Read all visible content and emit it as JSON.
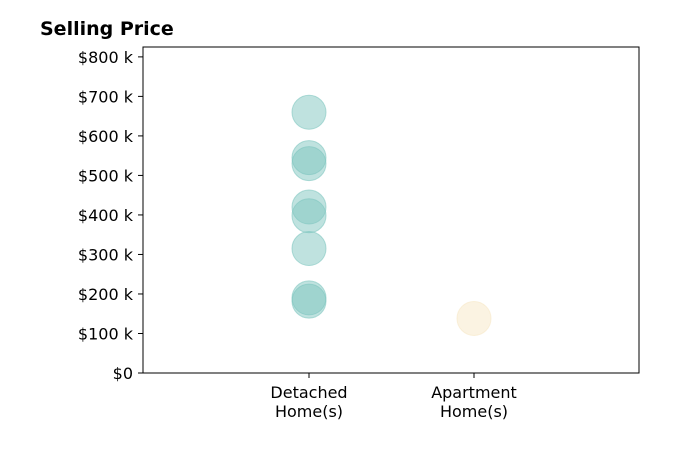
{
  "chart_data": {
    "type": "scatter",
    "title": "Selling Price",
    "xlabel": "",
    "ylabel": "",
    "categories": [
      "Detached\nHome(s)",
      "Apartment\nHome(s)"
    ],
    "ylim": [
      0,
      825000
    ],
    "y_ticks": [
      0,
      100000,
      200000,
      300000,
      400000,
      500000,
      600000,
      700000,
      800000
    ],
    "y_tick_labels": [
      "$0",
      "$100 k",
      "$200 k",
      "$300 k",
      "$400 k",
      "$500 k",
      "$600 k",
      "$700 k",
      "$800 k"
    ],
    "grid": false,
    "series": [
      {
        "category": "Detached\nHome(s)",
        "color": "#7fc6bf",
        "values": [
          660000,
          545000,
          530000,
          420000,
          398000,
          315000,
          190000,
          182000
        ]
      },
      {
        "category": "Apartment\nHome(s)",
        "color": "#f7e7c6",
        "values": [
          138000
        ]
      }
    ]
  }
}
